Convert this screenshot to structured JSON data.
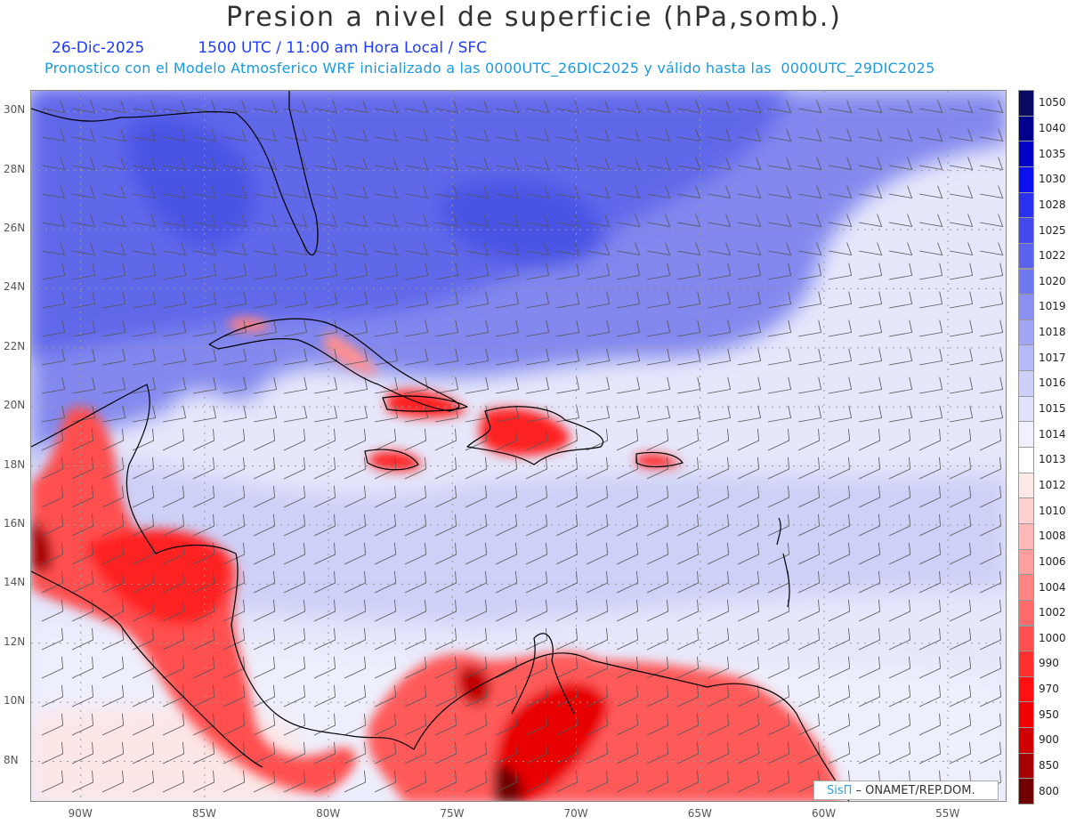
{
  "header": {
    "title": "Presion a nivel de superficie (hPa,somb.)",
    "date": "26-Dic-2025",
    "time": "1500 UTC / 11:00 am Hora Local / SFC",
    "model_note": "Pronostico con el Modelo Atmosferico WRF inicializado a las 0000UTC_26DIC2025 y válido hasta las  0000UTC_29DIC2025"
  },
  "map": {
    "lat_labels": [
      "30N",
      "28N",
      "26N",
      "24N",
      "22N",
      "20N",
      "18N",
      "16N",
      "14N",
      "12N",
      "10N",
      "8N"
    ],
    "lon_labels": [
      "90W",
      "85W",
      "80W",
      "75W",
      "70W",
      "65W",
      "60W",
      "55W"
    ],
    "lat_values": [
      30,
      28,
      26,
      24,
      22,
      20,
      18,
      16,
      14,
      12,
      10,
      8
    ],
    "lon_values": [
      -90,
      -85,
      -80,
      -75,
      -70,
      -65,
      -60,
      -55
    ]
  },
  "legend": {
    "levels": [
      "1050",
      "1040",
      "1035",
      "1030",
      "1028",
      "1025",
      "1022",
      "1020",
      "1019",
      "1018",
      "1017",
      "1016",
      "1015",
      "1014",
      "1013",
      "1012",
      "1010",
      "1008",
      "1006",
      "1004",
      "1002",
      "1000",
      "990",
      "970",
      "950",
      "900",
      "850",
      "800"
    ],
    "colors": [
      "#0a0a60",
      "#00008c",
      "#0000c8",
      "#0a10f0",
      "#2a30f0",
      "#4048ee",
      "#5a62ee",
      "#7078f0",
      "#8a90f2",
      "#a0a6f4",
      "#b6baf6",
      "#cccff8",
      "#e0e2fa",
      "#f0f1fc",
      "#ffffff",
      "#ffe8e8",
      "#ffd0d0",
      "#ffb8b8",
      "#ff9e9e",
      "#ff8484",
      "#ff6a6a",
      "#ff5050",
      "#ff3030",
      "#ff1010",
      "#f00000",
      "#d00000",
      "#a80000",
      "#700000"
    ]
  },
  "credit": {
    "brand": "SisΠ",
    "org": " – ONAMET/REP.DOM."
  }
}
